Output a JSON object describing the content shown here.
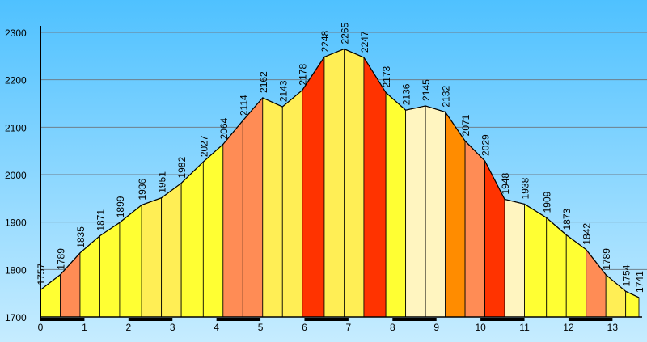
{
  "chart_data": {
    "type": "area",
    "title": "",
    "xlabel": "",
    "ylabel": "",
    "xlim": [
      0,
      13.6
    ],
    "ylim": [
      1700,
      2300
    ],
    "grid": true,
    "x_ticks": [
      "0",
      "1",
      "2",
      "3",
      "4",
      "5",
      "6",
      "7",
      "8",
      "9",
      "10",
      "11",
      "12",
      "13"
    ],
    "y_ticks": [
      "1700",
      "1800",
      "1900",
      "2000",
      "2100",
      "2200",
      "2300"
    ],
    "colors": {
      "background_top": "#4fc1ff",
      "background_bottom": "#c6ecff",
      "grid": "#6e7f8c",
      "axis": "#000000"
    },
    "points": [
      {
        "x": 0,
        "y": 1757,
        "label": "1757"
      },
      {
        "x": 0.45,
        "y": 1789,
        "label": "1789"
      },
      {
        "x": 0.9,
        "y": 1835,
        "label": "1835"
      },
      {
        "x": 1.35,
        "y": 1871,
        "label": "1871"
      },
      {
        "x": 1.8,
        "y": 1899,
        "label": "1899"
      },
      {
        "x": 2.3,
        "y": 1936,
        "label": "1936"
      },
      {
        "x": 2.75,
        "y": 1951,
        "label": "1951"
      },
      {
        "x": 3.2,
        "y": 1982,
        "label": "1982"
      },
      {
        "x": 3.7,
        "y": 2027,
        "label": "2027"
      },
      {
        "x": 4.15,
        "y": 2064,
        "label": "2064"
      },
      {
        "x": 4.6,
        "y": 2114,
        "label": "2114"
      },
      {
        "x": 5.05,
        "y": 2162,
        "label": "2162"
      },
      {
        "x": 5.5,
        "y": 2143,
        "label": "2143"
      },
      {
        "x": 5.95,
        "y": 2178,
        "label": "2178"
      },
      {
        "x": 6.45,
        "y": 2248,
        "label": "2248"
      },
      {
        "x": 6.9,
        "y": 2265,
        "label": "2265"
      },
      {
        "x": 7.35,
        "y": 2247,
        "label": "2247"
      },
      {
        "x": 7.85,
        "y": 2173,
        "label": "2173"
      },
      {
        "x": 8.3,
        "y": 2136,
        "label": "2136"
      },
      {
        "x": 8.75,
        "y": 2145,
        "label": "2145"
      },
      {
        "x": 9.2,
        "y": 2132,
        "label": "2132"
      },
      {
        "x": 9.65,
        "y": 2071,
        "label": "2071"
      },
      {
        "x": 10.1,
        "y": 2029,
        "label": "2029"
      },
      {
        "x": 10.55,
        "y": 1948,
        "label": "1948"
      },
      {
        "x": 11.0,
        "y": 1938,
        "label": "1938"
      },
      {
        "x": 11.5,
        "y": 1909,
        "label": "1909"
      },
      {
        "x": 11.95,
        "y": 1873,
        "label": "1873"
      },
      {
        "x": 12.4,
        "y": 1842,
        "label": "1842"
      },
      {
        "x": 12.85,
        "y": 1789,
        "label": "1789"
      },
      {
        "x": 13.3,
        "y": 1754,
        "label": "1754"
      },
      {
        "x": 13.6,
        "y": 1741,
        "label": "1741"
      }
    ],
    "segment_colors": [
      "#ffff33",
      "#ff8c55",
      "#ffff33",
      "#ffff33",
      "#ffff33",
      "#ffee55",
      "#ffee55",
      "#ffff33",
      "#ffff33",
      "#ff8c55",
      "#ff8c55",
      "#ffee55",
      "#ffee55",
      "#ff3300",
      "#ffee55",
      "#ffee55",
      "#ff3300",
      "#ffff33",
      "#fff5c0",
      "#fff5c0",
      "#ff8c00",
      "#ff8c55",
      "#ff3300",
      "#fff5c0",
      "#ffff33",
      "#ffff33",
      "#ffff33",
      "#ff8c55",
      "#ffee55",
      "#ffff33"
    ]
  }
}
